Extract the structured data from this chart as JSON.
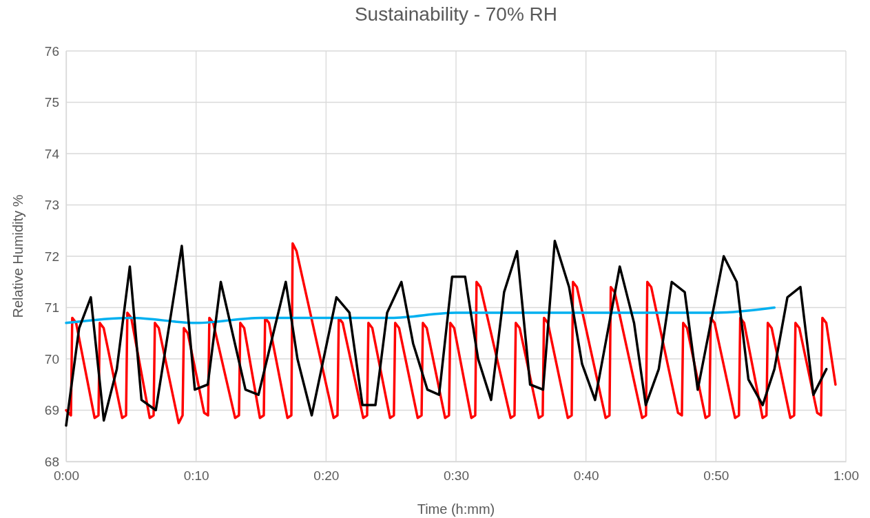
{
  "chart_data": {
    "type": "line",
    "title": "Sustainability - 70% RH",
    "xlabel": "Time (h:mm)",
    "ylabel": "Relative Humidity %",
    "xlim": [
      0,
      60
    ],
    "xticks": [
      {
        "value": 0,
        "label": "0:00"
      },
      {
        "value": 10,
        "label": "0:10"
      },
      {
        "value": 20,
        "label": "0:20"
      },
      {
        "value": 30,
        "label": "0:30"
      },
      {
        "value": 40,
        "label": "0:40"
      },
      {
        "value": 50,
        "label": "0:50"
      },
      {
        "value": 60,
        "label": "1:00"
      }
    ],
    "ylim": [
      68,
      76
    ],
    "yticks": [
      68,
      69,
      70,
      71,
      72,
      73,
      74,
      75,
      76
    ],
    "grid": true,
    "marker": "none",
    "line_style": "solid",
    "series": [
      {
        "color": "#ff0000",
        "x": [
          0,
          0.37,
          0.47,
          0.77,
          2.19,
          2.49,
          2.59,
          2.89,
          4.31,
          4.61,
          4.71,
          5.01,
          6.43,
          6.73,
          6.83,
          7.13,
          8.66,
          8.96,
          9.06,
          9.36,
          10.62,
          10.92,
          11.02,
          11.32,
          13.0,
          13.3,
          13.4,
          13.7,
          14.91,
          15.21,
          15.31,
          15.61,
          17.03,
          17.33,
          17.43,
          17.73,
          20.58,
          20.88,
          20.98,
          21.28,
          22.86,
          23.16,
          23.26,
          23.56,
          24.92,
          25.22,
          25.32,
          25.62,
          27.05,
          27.35,
          27.45,
          27.75,
          29.16,
          29.46,
          29.56,
          29.86,
          31.18,
          31.48,
          31.58,
          31.88,
          34.2,
          34.5,
          34.6,
          34.9,
          36.37,
          36.67,
          36.77,
          37.07,
          38.6,
          38.9,
          39.0,
          39.3,
          41.51,
          41.81,
          41.91,
          42.21,
          44.32,
          44.62,
          44.72,
          45.02,
          47.08,
          47.38,
          47.48,
          47.78,
          49.2,
          49.5,
          49.6,
          49.9,
          51.47,
          51.77,
          51.87,
          52.17,
          53.59,
          53.89,
          53.99,
          54.29,
          55.72,
          56.02,
          56.12,
          56.42,
          57.79,
          58.09,
          58.19,
          58.49,
          59.2
        ],
        "values": [
          69.0,
          68.9,
          70.8,
          70.7,
          68.85,
          68.9,
          70.7,
          70.6,
          68.85,
          68.9,
          70.9,
          70.8,
          68.85,
          68.9,
          70.7,
          70.6,
          68.75,
          68.9,
          70.6,
          70.5,
          68.95,
          68.9,
          70.8,
          70.7,
          68.85,
          68.9,
          70.7,
          70.6,
          68.85,
          68.9,
          70.8,
          70.7,
          68.85,
          68.9,
          72.25,
          72.1,
          68.85,
          68.9,
          70.8,
          70.7,
          68.85,
          68.9,
          70.7,
          70.6,
          68.85,
          68.9,
          70.7,
          70.6,
          68.85,
          68.9,
          70.7,
          70.6,
          68.85,
          68.9,
          70.7,
          70.6,
          68.85,
          68.9,
          71.5,
          71.4,
          68.85,
          68.9,
          70.7,
          70.6,
          68.85,
          68.9,
          70.8,
          70.7,
          68.85,
          68.9,
          71.5,
          71.4,
          68.85,
          68.9,
          71.4,
          71.3,
          68.85,
          68.9,
          71.5,
          71.4,
          68.95,
          68.9,
          70.7,
          70.6,
          68.85,
          68.9,
          70.8,
          70.7,
          68.85,
          68.9,
          70.8,
          70.7,
          68.85,
          68.9,
          70.7,
          70.6,
          68.85,
          68.9,
          70.7,
          70.6,
          68.95,
          68.9,
          70.8,
          70.7,
          69.5
        ]
      },
      {
        "color": "#00b0f0",
        "x": [
          0,
          5,
          10,
          15,
          20,
          25,
          30,
          35,
          40,
          45,
          50,
          54.5
        ],
        "values": [
          70.7,
          70.8,
          70.7,
          70.8,
          70.8,
          70.8,
          70.9,
          70.9,
          70.9,
          70.9,
          70.9,
          71.0
        ]
      },
      {
        "color": "#000000",
        "x": [
          0,
          1.0,
          1.9,
          2.9,
          3.9,
          4.9,
          5.8,
          6.9,
          8.9,
          9.9,
          10.9,
          11.9,
          13.8,
          14.8,
          16.9,
          17.8,
          18.9,
          20.8,
          21.8,
          22.8,
          23.8,
          24.7,
          25.8,
          26.7,
          27.8,
          28.7,
          29.7,
          30.7,
          31.7,
          32.7,
          33.7,
          34.7,
          35.7,
          36.7,
          37.6,
          38.7,
          39.7,
          40.7,
          42.6,
          43.7,
          44.6,
          45.6,
          46.6,
          47.6,
          48.6,
          50.6,
          51.6,
          52.5,
          53.6,
          54.5,
          55.5,
          56.5,
          57.5,
          58.5
        ],
        "values": [
          68.7,
          70.6,
          71.2,
          68.8,
          69.8,
          71.8,
          69.2,
          69.0,
          72.2,
          69.4,
          69.5,
          71.5,
          69.4,
          69.3,
          71.5,
          70.0,
          68.9,
          71.2,
          70.9,
          69.1,
          69.1,
          70.9,
          71.5,
          70.3,
          69.4,
          69.3,
          71.6,
          71.6,
          70.0,
          69.2,
          71.3,
          72.1,
          69.5,
          69.4,
          72.3,
          71.4,
          69.9,
          69.2,
          71.8,
          70.7,
          69.1,
          69.8,
          71.5,
          71.3,
          69.4,
          72.0,
          71.5,
          69.6,
          69.1,
          69.8,
          71.2,
          71.4,
          69.3,
          69.8
        ]
      }
    ]
  }
}
